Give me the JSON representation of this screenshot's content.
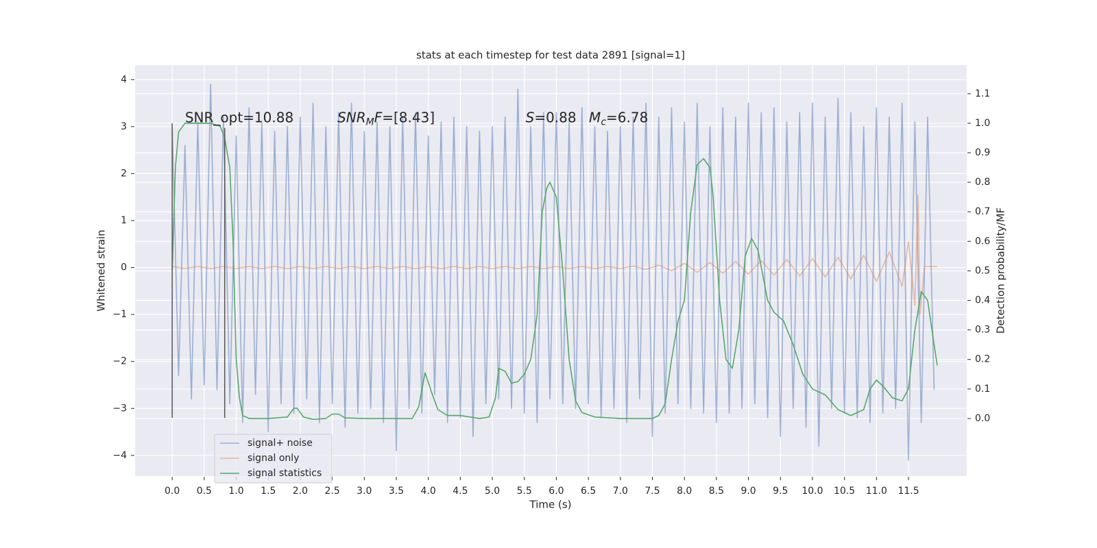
{
  "chart_data": {
    "type": "line",
    "title": "stats at each timestep for test data 2891 [signal=1]",
    "xlabel": "Time (s)",
    "ylabel": "Whitened strain",
    "y2label": "Detection probability/MF",
    "xlim": [
      -0.58,
      12.41
    ],
    "ylim": [
      -4.44,
      4.31
    ],
    "y2lim": [
      -0.195,
      1.197
    ],
    "xticks": [
      {
        "value": 0,
        "label": "0.0"
      },
      0.5,
      {
        "value": 1,
        "label": "1.0"
      },
      1.5,
      {
        "value": 2,
        "label": "2.0"
      },
      2.5,
      {
        "value": 3,
        "label": "3.0"
      },
      3.5,
      {
        "value": 4,
        "label": "4.0"
      },
      4.5,
      {
        "value": 5,
        "label": "5.0"
      },
      5.5,
      {
        "value": 6,
        "label": "6.0"
      },
      6.5,
      {
        "value": 7,
        "label": "7.0"
      },
      7.5,
      {
        "value": 8,
        "label": "8.0"
      },
      8.5,
      {
        "value": 9,
        "label": "9.0"
      },
      9.5,
      {
        "value": 10,
        "label": "10.0"
      },
      10.5,
      {
        "value": 11,
        "label": "11.0"
      },
      11.5
    ],
    "yticks": [
      {
        "value": -4,
        "label": "−4"
      },
      {
        "value": -3,
        "label": "−3"
      },
      {
        "value": -2,
        "label": "−2"
      },
      {
        "value": -1,
        "label": "−1"
      },
      0,
      1,
      2,
      3,
      4
    ],
    "y2ticks": [
      {
        "value": 0,
        "label": "0.0"
      },
      0.1,
      0.2,
      0.3,
      0.4,
      0.5,
      0.6,
      0.7,
      0.8,
      0.9,
      {
        "value": 1,
        "label": "1.0"
      },
      1.1
    ],
    "grid": true,
    "legend": "lower left",
    "series": [
      {
        "name": "signal+ noise",
        "color": "#4c72b0",
        "alpha": 0.5,
        "x": [
          0,
          0.1,
          0.2,
          0.3,
          0.4,
          0.5,
          0.6,
          0.7,
          0.8,
          0.9,
          1,
          1.1,
          1.2,
          1.3,
          1.4,
          1.5,
          1.6,
          1.7,
          1.8,
          1.9,
          2,
          2.1,
          2.2,
          2.3,
          2.4,
          2.5,
          2.6,
          2.7,
          2.8,
          2.9,
          3,
          3.1,
          3.2,
          3.3,
          3.4,
          3.5,
          3.6,
          3.7,
          3.8,
          3.9,
          4,
          4.1,
          4.2,
          4.3,
          4.4,
          4.5,
          4.6,
          4.7,
          4.8,
          4.9,
          5,
          5.1,
          5.2,
          5.3,
          5.4,
          5.5,
          5.6,
          5.7,
          5.8,
          5.9,
          6,
          6.1,
          6.2,
          6.3,
          6.4,
          6.5,
          6.6,
          6.7,
          6.8,
          6.9,
          7,
          7.1,
          7.2,
          7.3,
          7.4,
          7.5,
          7.6,
          7.7,
          7.8,
          7.9,
          8,
          8.1,
          8.2,
          8.3,
          8.4,
          8.5,
          8.6,
          8.7,
          8.8,
          8.9,
          9,
          9.1,
          9.2,
          9.3,
          9.4,
          9.5,
          9.6,
          9.7,
          9.8,
          9.9,
          10,
          10.1,
          10.2,
          10.3,
          10.4,
          10.5,
          10.6,
          10.7,
          10.8,
          10.9,
          11,
          11.1,
          11.2,
          11.3,
          11.4,
          11.5,
          11.6,
          11.7,
          11.8,
          11.9
        ],
        "values": [
          3.0,
          -2.3,
          2.6,
          -2.8,
          3.1,
          -2.5,
          3.9,
          -2.6,
          3.2,
          -2.9,
          2.8,
          -3.3,
          3.4,
          -2.7,
          3.1,
          -3.5,
          2.9,
          -2.9,
          3.0,
          -3.1,
          3.2,
          -2.8,
          3.5,
          -3.3,
          3.0,
          -2.9,
          3.3,
          -3.4,
          3.5,
          -3.1,
          2.9,
          -3.0,
          3.1,
          -3.3,
          3.0,
          -3.9,
          3.2,
          -3.0,
          3.3,
          -3.1,
          2.8,
          -2.7,
          3.1,
          -3.3,
          3.2,
          -3.2,
          3.0,
          -3.6,
          2.9,
          -2.9,
          3.0,
          -2.8,
          3.2,
          -3.0,
          3.8,
          -3.1,
          3.0,
          -3.3,
          3.3,
          -2.8,
          3.3,
          -2.9,
          3.1,
          -3.0,
          3.4,
          -2.9,
          3.0,
          -3.2,
          2.9,
          -3.0,
          3.0,
          -3.3,
          3.2,
          -2.8,
          3.5,
          -3.6,
          3.2,
          -3.1,
          3.4,
          -2.9,
          3.1,
          -3.0,
          3.5,
          -3.1,
          3.0,
          -3.3,
          3.4,
          -3.1,
          3.2,
          -3.0,
          3.5,
          -2.9,
          3.3,
          -3.2,
          3.4,
          -3.6,
          3.1,
          -3.0,
          3.3,
          -3.4,
          3.5,
          -3.8,
          3.2,
          -3.0,
          3.6,
          -3.1,
          3.3,
          -3.2,
          3.0,
          -3.3,
          3.4,
          -3.1,
          3.2,
          -3.0,
          3.5,
          -4.1,
          3.1,
          -3.3,
          3.2,
          -2.6
        ]
      },
      {
        "name": "signal only",
        "color": "#dd8452",
        "alpha": 0.5,
        "x": [
          0,
          0.2,
          0.4,
          0.6,
          0.8,
          1,
          1.2,
          1.4,
          1.6,
          1.8,
          2,
          2.2,
          2.4,
          2.6,
          2.8,
          3,
          3.2,
          3.4,
          3.6,
          3.8,
          4,
          4.2,
          4.4,
          4.6,
          4.8,
          5,
          5.2,
          5.4,
          5.6,
          5.8,
          6,
          6.2,
          6.4,
          6.6,
          6.8,
          7,
          7.2,
          7.4,
          7.6,
          7.8,
          8,
          8.2,
          8.4,
          8.6,
          8.8,
          9,
          9.2,
          9.4,
          9.6,
          9.8,
          10,
          10.2,
          10.4,
          10.6,
          10.8,
          11,
          11.2,
          11.4,
          11.5,
          11.6,
          11.65,
          11.68,
          11.75,
          11.95
        ],
        "values": [
          0.02,
          -0.02,
          0.02,
          -0.02,
          0.02,
          -0.02,
          0.02,
          -0.02,
          0.02,
          -0.02,
          0.02,
          -0.02,
          0.02,
          -0.02,
          0.02,
          -0.02,
          0.02,
          -0.02,
          0.02,
          -0.02,
          0.02,
          -0.02,
          0.02,
          -0.02,
          0.02,
          -0.02,
          0.02,
          -0.02,
          0.02,
          -0.02,
          0.02,
          -0.02,
          0.02,
          -0.02,
          0.02,
          -0.02,
          0.03,
          -0.04,
          0.05,
          -0.07,
          0.09,
          -0.1,
          0.11,
          -0.12,
          0.13,
          -0.14,
          0.15,
          -0.16,
          0.17,
          -0.18,
          0.19,
          -0.2,
          0.22,
          -0.24,
          0.26,
          -0.29,
          0.33,
          -0.4,
          0.55,
          -0.8,
          1.55,
          -1.0,
          0.02,
          0.02
        ]
      },
      {
        "name": "signal statistics",
        "color": "#55a868",
        "axis": "y2",
        "x": [
          0,
          0.05,
          0.1,
          0.2,
          0.4,
          0.6,
          0.75,
          0.82,
          0.9,
          0.95,
          1,
          1.05,
          1.1,
          1.2,
          1.5,
          1.8,
          1.9,
          1.95,
          2.05,
          2.2,
          2.4,
          2.5,
          2.6,
          2.7,
          3,
          3.5,
          3.75,
          3.85,
          3.95,
          4.05,
          4.15,
          4.3,
          4.5,
          4.8,
          4.95,
          5.05,
          5.1,
          5.2,
          5.3,
          5.4,
          5.5,
          5.6,
          5.7,
          5.78,
          5.85,
          5.9,
          6,
          6.1,
          6.2,
          6.3,
          6.4,
          6.6,
          7,
          7.5,
          7.6,
          7.7,
          7.8,
          7.9,
          8,
          8.1,
          8.2,
          8.3,
          8.4,
          8.45,
          8.55,
          8.65,
          8.75,
          8.85,
          8.95,
          9.05,
          9.15,
          9.3,
          9.4,
          9.55,
          9.7,
          9.85,
          10,
          10.2,
          10.4,
          10.6,
          10.8,
          10.9,
          11,
          11.1,
          11.25,
          11.4,
          11.5,
          11.6,
          11.7,
          11.8,
          11.9,
          11.95
        ],
        "values": [
          0.5,
          0.85,
          0.97,
          1.0,
          1.0,
          1.0,
          0.99,
          0.95,
          0.85,
          0.6,
          0.2,
          0.07,
          0.01,
          0.0,
          0.0,
          0.005,
          0.035,
          0.035,
          0.005,
          -0.003,
          0.0,
          0.015,
          0.015,
          0.002,
          0.0,
          0.0,
          0.0,
          0.04,
          0.155,
          0.09,
          0.03,
          0.01,
          0.01,
          0.0,
          0.005,
          0.07,
          0.17,
          0.16,
          0.12,
          0.125,
          0.15,
          0.2,
          0.35,
          0.7,
          0.78,
          0.8,
          0.75,
          0.5,
          0.2,
          0.06,
          0.02,
          0.005,
          0.0,
          0.0,
          0.01,
          0.05,
          0.2,
          0.33,
          0.4,
          0.7,
          0.86,
          0.88,
          0.85,
          0.75,
          0.4,
          0.2,
          0.17,
          0.3,
          0.55,
          0.61,
          0.57,
          0.4,
          0.36,
          0.33,
          0.25,
          0.15,
          0.1,
          0.08,
          0.03,
          0.01,
          0.03,
          0.1,
          0.13,
          0.11,
          0.07,
          0.06,
          0.1,
          0.3,
          0.43,
          0.4,
          0.25,
          0.18
        ]
      }
    ],
    "vlines": [
      {
        "x": 0,
        "ymin": -3.2,
        "ymax": 3.07,
        "color": "#555555"
      },
      {
        "x": 0.82,
        "ymin": -3.2,
        "ymax": 2.97,
        "color": "#555555"
      }
    ],
    "annotations": [
      {
        "x": 0.2,
        "y": 3.18,
        "parts": [
          {
            "text": "SNR_opt=10.88"
          }
        ]
      },
      {
        "x": 2.58,
        "y": 3.18,
        "parts": [
          {
            "text": "SNR",
            "italic": true
          },
          {
            "text": "M",
            "italic": true,
            "sub": true
          },
          {
            "text": "F",
            "italic": true
          },
          {
            "text": "=[8.43]"
          }
        ]
      },
      {
        "x": 5.52,
        "y": 3.18,
        "parts": [
          {
            "text": "S",
            "italic": true
          },
          {
            "text": "=0.88"
          }
        ]
      },
      {
        "x": 6.51,
        "y": 3.18,
        "parts": [
          {
            "text": "M",
            "italic": true
          },
          {
            "text": "c",
            "italic": true,
            "sub": true
          },
          {
            "text": "=6.78"
          }
        ]
      }
    ]
  }
}
